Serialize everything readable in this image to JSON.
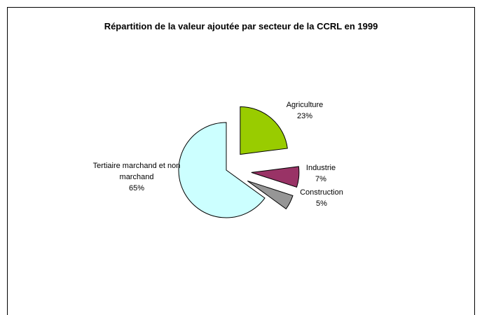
{
  "chart_data": {
    "type": "pie",
    "title": "Répartition de la valeur ajoutée par secteur de la CCRL en 1999",
    "categories": [
      "Agriculture",
      "Industrie",
      "Construction",
      "Tertiaire marchand et non marchand"
    ],
    "values": [
      23,
      7,
      5,
      65
    ],
    "value_labels": [
      "23%",
      "7%",
      "5%",
      "65%"
    ],
    "colors": [
      "#99cc00",
      "#993366",
      "#969696",
      "#ccffff"
    ]
  }
}
